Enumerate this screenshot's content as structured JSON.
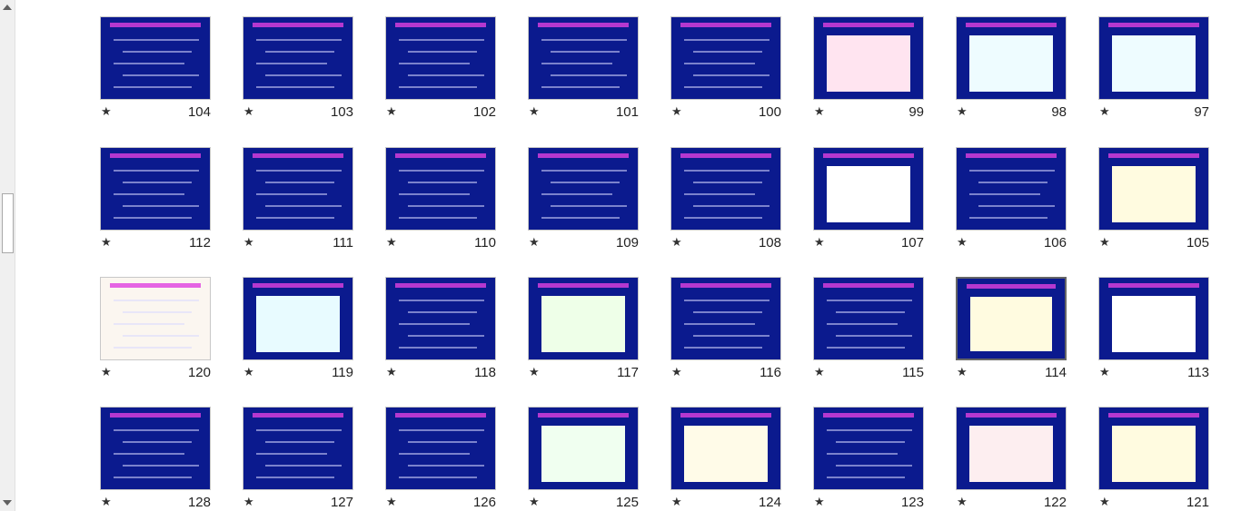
{
  "slides": [
    {
      "number": 97
    },
    {
      "number": 98
    },
    {
      "number": 99
    },
    {
      "number": 100
    },
    {
      "number": 101
    },
    {
      "number": 102
    },
    {
      "number": 103
    },
    {
      "number": 104
    },
    {
      "number": 105
    },
    {
      "number": 106
    },
    {
      "number": 107
    },
    {
      "number": 108
    },
    {
      "number": 109
    },
    {
      "number": 110
    },
    {
      "number": 111
    },
    {
      "number": 112
    },
    {
      "number": 113
    },
    {
      "number": 114
    },
    {
      "number": 115
    },
    {
      "number": 116
    },
    {
      "number": 117
    },
    {
      "number": 118
    },
    {
      "number": 119
    },
    {
      "number": 120
    },
    {
      "number": 121
    },
    {
      "number": 122
    },
    {
      "number": 123
    },
    {
      "number": 124
    },
    {
      "number": 125
    },
    {
      "number": 126
    },
    {
      "number": 127
    },
    {
      "number": 128
    }
  ]
}
